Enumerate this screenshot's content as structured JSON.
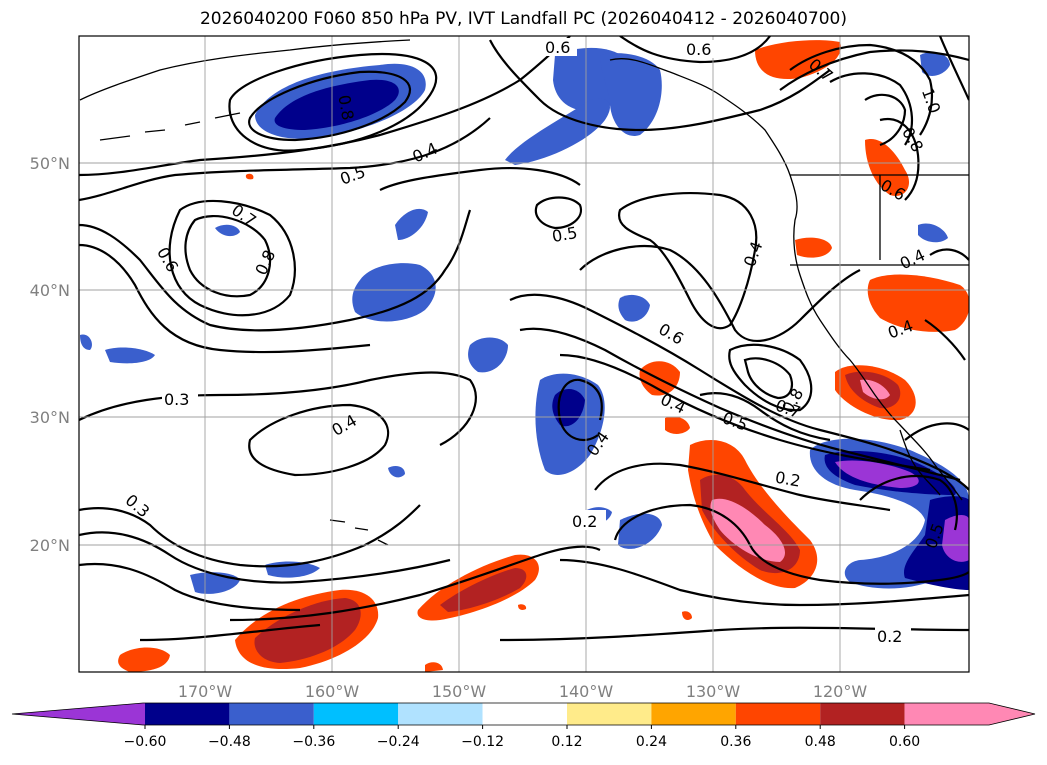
{
  "title": "2026040200 F060 850 hPa PV, IVT Landfall PC (2026040412 - 2026040700)",
  "axes": {
    "lat_labels": [
      "50°N",
      "40°N",
      "30°N",
      "20°N"
    ],
    "lon_labels": [
      "170°W",
      "160°W",
      "150°W",
      "140°W",
      "130°W",
      "120°W"
    ]
  },
  "contour_labels": [
    "0.6",
    "0.6",
    "0.7",
    "1.0",
    "0.8",
    "0.8",
    "0.6",
    "0.4",
    "0.5",
    "0.7",
    "0.8",
    "0.6",
    "0.5",
    "0.4",
    "0.4",
    "0.6",
    "0.8",
    "0.7",
    "0.4",
    "0.5",
    "0.4",
    "0.3",
    "0.4",
    "0.2",
    "0.2",
    "0.3",
    "0.2",
    "0.5",
    "0.4"
  ],
  "colorbar": {
    "ticks": [
      "−0.60",
      "−0.48",
      "−0.36",
      "−0.24",
      "−0.12",
      "0.12",
      "0.24",
      "0.36",
      "0.48",
      "0.60"
    ],
    "colors": [
      "#9b35d6",
      "#00008b",
      "#3a5fcd",
      "#00bfff",
      "#b0e2ff",
      "#ffffff",
      "#ffeb8a",
      "#ffa500",
      "#ff4500",
      "#b22222",
      "#ff88b4",
      "#ff88b4"
    ],
    "extend": "both"
  }
}
